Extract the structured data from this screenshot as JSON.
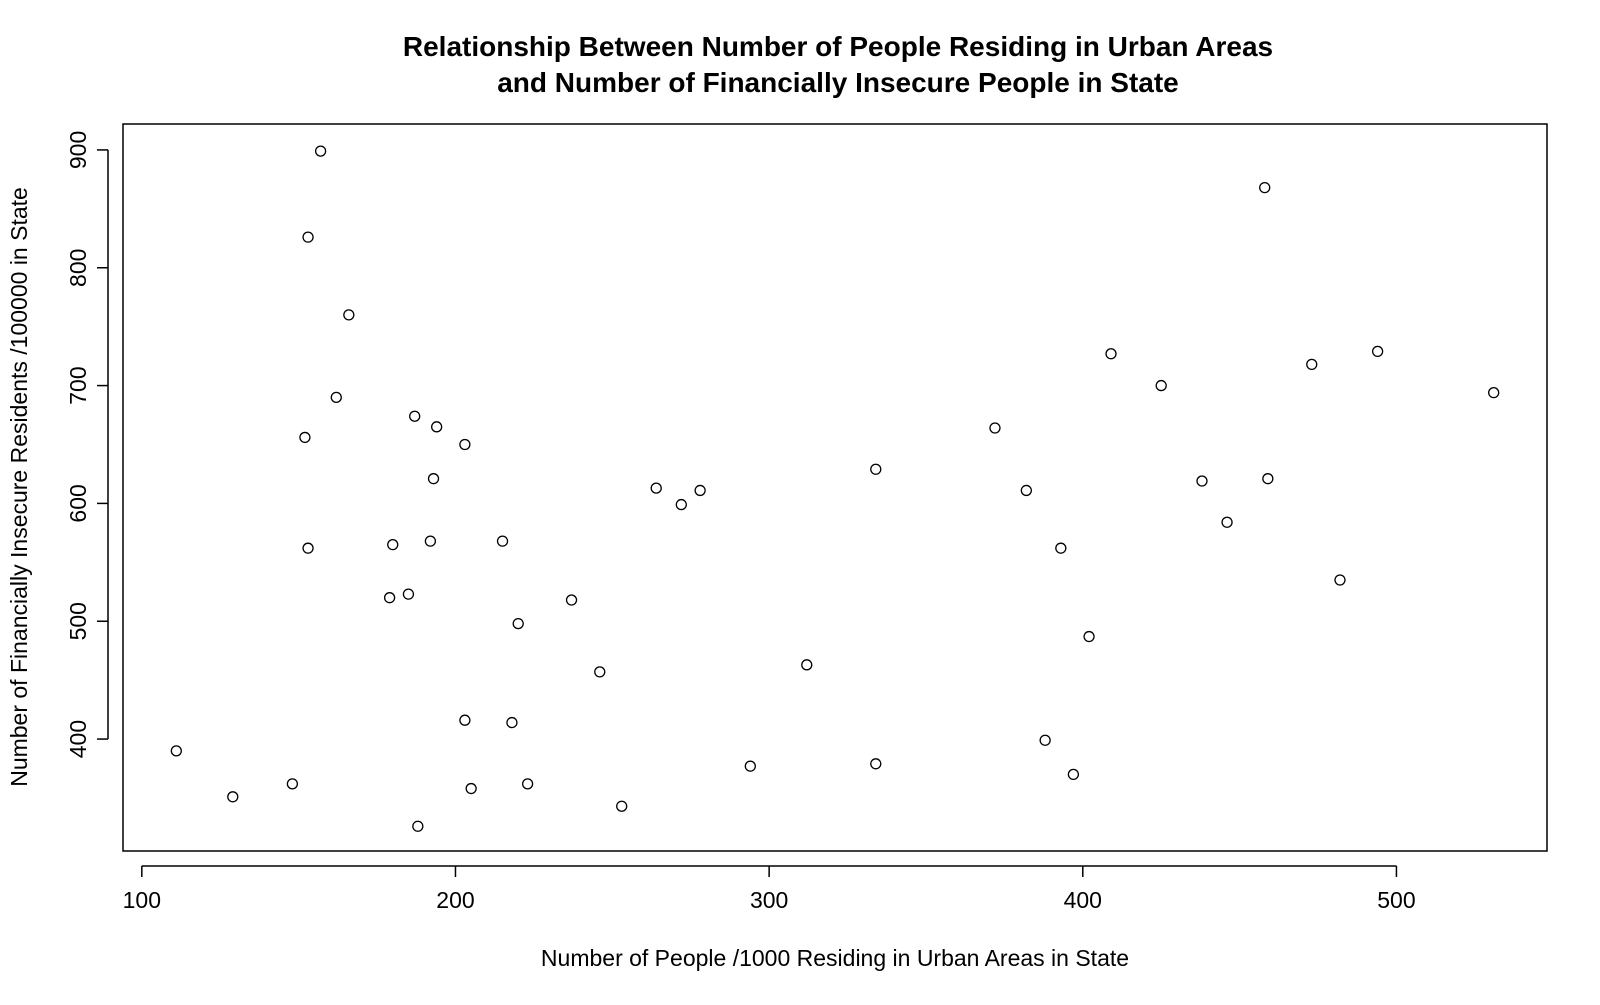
{
  "chart_data": {
    "type": "scatter",
    "title": [
      "Relationship Between Number of People Residing in Urban Areas",
      "and Number of Financially Insecure People in State"
    ],
    "xlabel": "Number of People /1000 Residing in Urban Areas in State",
    "ylabel": "Number of Financially Insecure Residents /100000 in State",
    "xlim": [
      94,
      548
    ],
    "ylim": [
      305,
      922
    ],
    "xticks": [
      100,
      200,
      300,
      400,
      500
    ],
    "yticks": [
      400,
      500,
      600,
      700,
      800,
      900
    ],
    "xtick_labels": [
      "100",
      "200",
      "300",
      "400",
      "500"
    ],
    "ytick_labels": [
      "400",
      "500",
      "600",
      "700",
      "800",
      "900"
    ],
    "grid": false,
    "marker": "open-circle",
    "points": [
      {
        "x": 111,
        "y": 390
      },
      {
        "x": 129,
        "y": 351
      },
      {
        "x": 148,
        "y": 362
      },
      {
        "x": 152,
        "y": 656
      },
      {
        "x": 153,
        "y": 826
      },
      {
        "x": 153,
        "y": 562
      },
      {
        "x": 157,
        "y": 899
      },
      {
        "x": 162,
        "y": 690
      },
      {
        "x": 166,
        "y": 760
      },
      {
        "x": 179,
        "y": 520
      },
      {
        "x": 180,
        "y": 565
      },
      {
        "x": 185,
        "y": 523
      },
      {
        "x": 187,
        "y": 674
      },
      {
        "x": 188,
        "y": 326
      },
      {
        "x": 192,
        "y": 568
      },
      {
        "x": 193,
        "y": 621
      },
      {
        "x": 194,
        "y": 665
      },
      {
        "x": 203,
        "y": 650
      },
      {
        "x": 203,
        "y": 416
      },
      {
        "x": 205,
        "y": 358
      },
      {
        "x": 215,
        "y": 568
      },
      {
        "x": 218,
        "y": 414
      },
      {
        "x": 220,
        "y": 498
      },
      {
        "x": 223,
        "y": 362
      },
      {
        "x": 237,
        "y": 518
      },
      {
        "x": 246,
        "y": 457
      },
      {
        "x": 253,
        "y": 343
      },
      {
        "x": 264,
        "y": 613
      },
      {
        "x": 272,
        "y": 599
      },
      {
        "x": 278,
        "y": 611
      },
      {
        "x": 294,
        "y": 377
      },
      {
        "x": 312,
        "y": 463
      },
      {
        "x": 334,
        "y": 629
      },
      {
        "x": 334,
        "y": 379
      },
      {
        "x": 372,
        "y": 664
      },
      {
        "x": 382,
        "y": 611
      },
      {
        "x": 388,
        "y": 399
      },
      {
        "x": 393,
        "y": 562
      },
      {
        "x": 397,
        "y": 370
      },
      {
        "x": 402,
        "y": 487
      },
      {
        "x": 409,
        "y": 727
      },
      {
        "x": 425,
        "y": 700
      },
      {
        "x": 438,
        "y": 619
      },
      {
        "x": 446,
        "y": 584
      },
      {
        "x": 458,
        "y": 868
      },
      {
        "x": 459,
        "y": 621
      },
      {
        "x": 473,
        "y": 718
      },
      {
        "x": 482,
        "y": 535
      },
      {
        "x": 494,
        "y": 729
      },
      {
        "x": 531,
        "y": 694
      }
    ]
  }
}
